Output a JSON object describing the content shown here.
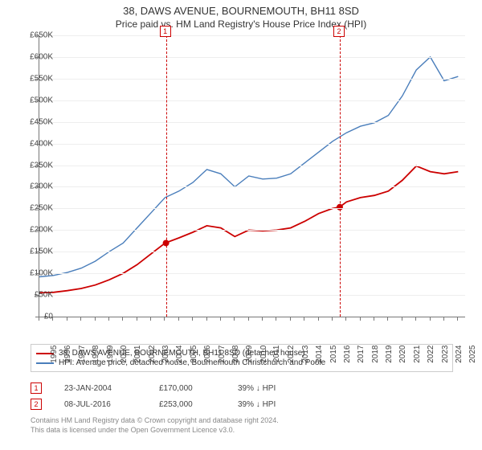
{
  "title": "38, DAWS AVENUE, BOURNEMOUTH, BH11 8SD",
  "subtitle": "Price paid vs. HM Land Registry's House Price Index (HPI)",
  "chart": {
    "type": "line",
    "background_color": "#ffffff",
    "grid_color": "#eeeeee",
    "axis_color": "#777777",
    "xlim": [
      1995,
      2025.5
    ],
    "ylim": [
      0,
      650000
    ],
    "ytick_step": 50000,
    "ytick_labels": [
      "£0",
      "£50K",
      "£100K",
      "£150K",
      "£200K",
      "£250K",
      "£300K",
      "£350K",
      "£400K",
      "£450K",
      "£500K",
      "£550K",
      "£600K",
      "£650K"
    ],
    "xticks": [
      1995,
      1996,
      1997,
      1998,
      1999,
      2000,
      2001,
      2002,
      2003,
      2004,
      2005,
      2006,
      2007,
      2008,
      2009,
      2010,
      2011,
      2012,
      2013,
      2014,
      2015,
      2016,
      2017,
      2018,
      2019,
      2020,
      2021,
      2022,
      2023,
      2024,
      2025
    ],
    "series": [
      {
        "name": "property_price",
        "label": "38, DAWS AVENUE, BOURNEMOUTH, BH11 8SD (detached house)",
        "color": "#cc0000",
        "line_width": 1.8,
        "data": [
          [
            1995,
            55000
          ],
          [
            1996,
            56000
          ],
          [
            1997,
            60000
          ],
          [
            1998,
            65000
          ],
          [
            1999,
            73000
          ],
          [
            2000,
            85000
          ],
          [
            2001,
            100000
          ],
          [
            2002,
            120000
          ],
          [
            2003,
            145000
          ],
          [
            2004,
            170000
          ],
          [
            2005,
            182000
          ],
          [
            2006,
            195000
          ],
          [
            2007,
            210000
          ],
          [
            2008,
            205000
          ],
          [
            2009,
            185000
          ],
          [
            2010,
            200000
          ],
          [
            2011,
            198000
          ],
          [
            2012,
            200000
          ],
          [
            2013,
            205000
          ],
          [
            2014,
            220000
          ],
          [
            2015,
            238000
          ],
          [
            2016,
            250000
          ],
          [
            2016.5,
            253000
          ],
          [
            2017,
            265000
          ],
          [
            2018,
            275000
          ],
          [
            2019,
            280000
          ],
          [
            2020,
            290000
          ],
          [
            2021,
            315000
          ],
          [
            2022,
            348000
          ],
          [
            2023,
            335000
          ],
          [
            2024,
            330000
          ],
          [
            2025,
            335000
          ]
        ]
      },
      {
        "name": "hpi",
        "label": "HPI: Average price, detached house, Bournemouth Christchurch and Poole",
        "color": "#4a7ebb",
        "line_width": 1.4,
        "data": [
          [
            1995,
            92000
          ],
          [
            1996,
            95000
          ],
          [
            1997,
            102000
          ],
          [
            1998,
            112000
          ],
          [
            1999,
            128000
          ],
          [
            2000,
            150000
          ],
          [
            2001,
            170000
          ],
          [
            2002,
            205000
          ],
          [
            2003,
            240000
          ],
          [
            2004,
            275000
          ],
          [
            2005,
            290000
          ],
          [
            2006,
            310000
          ],
          [
            2007,
            340000
          ],
          [
            2008,
            330000
          ],
          [
            2009,
            300000
          ],
          [
            2010,
            325000
          ],
          [
            2011,
            318000
          ],
          [
            2012,
            320000
          ],
          [
            2013,
            330000
          ],
          [
            2014,
            355000
          ],
          [
            2015,
            380000
          ],
          [
            2016,
            405000
          ],
          [
            2017,
            425000
          ],
          [
            2018,
            440000
          ],
          [
            2019,
            448000
          ],
          [
            2020,
            465000
          ],
          [
            2021,
            510000
          ],
          [
            2022,
            570000
          ],
          [
            2023,
            600000
          ],
          [
            2024,
            545000
          ],
          [
            2025,
            555000
          ]
        ]
      }
    ],
    "sale_markers": [
      {
        "index": "1",
        "x": 2004.07,
        "y": 170000,
        "color": "#cc0000"
      },
      {
        "index": "2",
        "x": 2016.52,
        "y": 253000,
        "color": "#cc0000"
      }
    ],
    "label_fontsize": 10,
    "title_fontsize": 13
  },
  "sales": [
    {
      "index": "1",
      "date": "23-JAN-2004",
      "price": "£170,000",
      "delta": "39% ↓ HPI",
      "color": "#cc0000"
    },
    {
      "index": "2",
      "date": "08-JUL-2016",
      "price": "£253,000",
      "delta": "39% ↓ HPI",
      "color": "#cc0000"
    }
  ],
  "footer": {
    "line1": "Contains HM Land Registry data © Crown copyright and database right 2024.",
    "line2": "This data is licensed under the Open Government Licence v3.0."
  }
}
